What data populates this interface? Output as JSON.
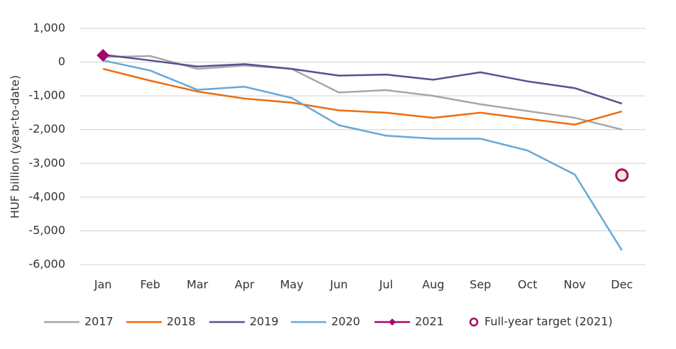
{
  "chart_data": {
    "type": "line",
    "y_label": "HUF billion (year-to-date)",
    "categories": [
      "Jan",
      "Feb",
      "Mar",
      "Apr",
      "May",
      "Jun",
      "Jul",
      "Aug",
      "Sep",
      "Oct",
      "Nov",
      "Dec"
    ],
    "series": [
      {
        "name": "2017",
        "color": "#a6a6a6",
        "values": [
          150,
          180,
          -200,
          -100,
          -200,
          -900,
          -830,
          -1000,
          -1250,
          -1450,
          -1650,
          -2000
        ]
      },
      {
        "name": "2018",
        "color": "#ee6c10",
        "values": [
          -200,
          -550,
          -870,
          -1080,
          -1200,
          -1430,
          -1500,
          -1650,
          -1500,
          -1680,
          -1850,
          -1460
        ]
      },
      {
        "name": "2019",
        "color": "#56508e",
        "values": [
          220,
          50,
          -130,
          -60,
          -200,
          -400,
          -370,
          -520,
          -300,
          -570,
          -770,
          -1230
        ]
      },
      {
        "name": "2020",
        "color": "#66a8d8",
        "values": [
          50,
          -250,
          -820,
          -730,
          -1060,
          -1870,
          -2180,
          -2270,
          -2270,
          -2620,
          -3330,
          -5580
        ]
      },
      {
        "name": "2021",
        "color": "#a6096a",
        "marker": "diamond",
        "values": [
          200,
          null,
          null,
          null,
          null,
          null,
          null,
          null,
          null,
          null,
          null,
          null
        ]
      },
      {
        "name": "Full-year target (2021)",
        "color": "#a6096a",
        "marker": "circle",
        "line": false,
        "values": [
          null,
          null,
          null,
          null,
          null,
          null,
          null,
          null,
          null,
          null,
          null,
          -3350
        ]
      }
    ],
    "ylim": [
      -6000,
      1000
    ],
    "yticks": [
      {
        "value": -6000,
        "label": "-6,000"
      },
      {
        "value": -5000,
        "label": "-5,000"
      },
      {
        "value": -4000,
        "label": "-4,000"
      },
      {
        "value": -3000,
        "label": "-3,000"
      },
      {
        "value": -2000,
        "label": "-2,000"
      },
      {
        "value": -1000,
        "label": "-1,000"
      },
      0,
      {
        "value": 1000,
        "label": "1,000"
      }
    ],
    "grid": true,
    "legend": "bottom"
  }
}
